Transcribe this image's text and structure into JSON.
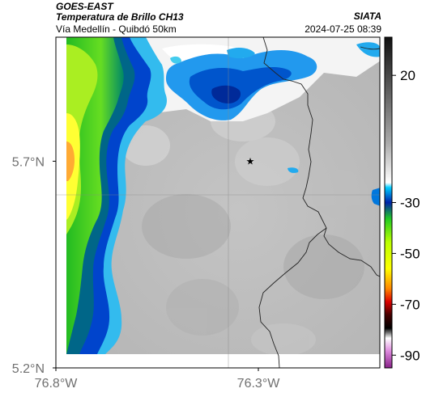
{
  "header": {
    "satellite": "GOES-EAST",
    "product": "Temperatura de Brillo CH13",
    "organization": "SIATA",
    "subtitle": "Vía Medellín - Quibdó 50km",
    "timestamp": "2024-07-25 08:39"
  },
  "map": {
    "lon_range": [
      -76.8,
      -76.0
    ],
    "lat_range": [
      5.2,
      6.0
    ],
    "x_ticks": [
      {
        "value": -76.8,
        "label": "76.8°W"
      },
      {
        "value": -76.3,
        "label": "76.3°W"
      }
    ],
    "y_ticks": [
      {
        "value": 5.7,
        "label": "5.7°N"
      },
      {
        "value": 5.2,
        "label": "5.2°N"
      }
    ],
    "gridlines": true,
    "marker": {
      "lon": -76.32,
      "lat": 5.7,
      "symbol": "star"
    }
  },
  "colorbar": {
    "range": [
      -95,
      35
    ],
    "ticks": [
      {
        "value": 20,
        "label": "20"
      },
      {
        "value": -30,
        "label": "-30"
      },
      {
        "value": -50,
        "label": "-50"
      },
      {
        "value": -70,
        "label": "-70"
      },
      {
        "value": -90,
        "label": "-90"
      }
    ]
  },
  "colors": {
    "cloud_top_cold": "#f7a83a",
    "deep_convection": "#ffff33",
    "green_band": "#33cc33",
    "blue_band": "#0066dd",
    "clear_gray": "#c9c9c9"
  }
}
